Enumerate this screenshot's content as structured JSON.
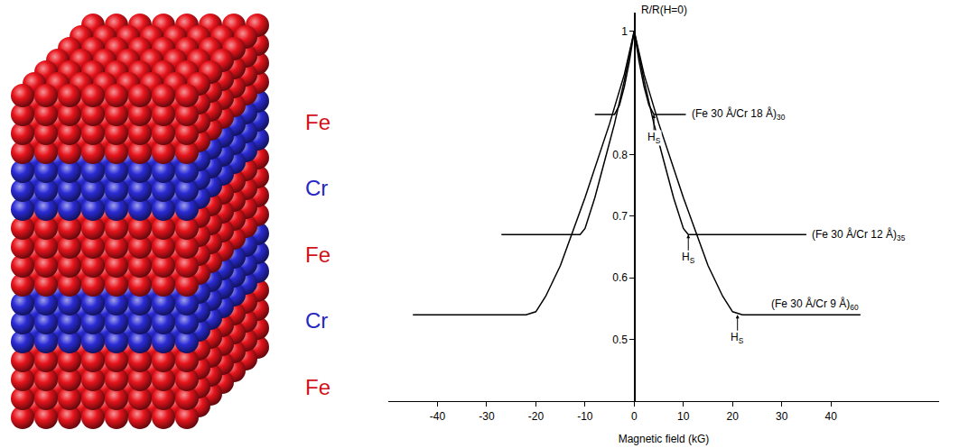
{
  "diagram": {
    "layers": [
      {
        "label": "Fe",
        "color": "#e8141c"
      },
      {
        "label": "Cr",
        "color": "#2b2bd6"
      },
      {
        "label": "Fe",
        "color": "#e8141c"
      },
      {
        "label": "Cr",
        "color": "#2b2bd6"
      },
      {
        "label": "Fe",
        "color": "#e8141c"
      }
    ]
  },
  "chart_data": {
    "type": "line",
    "x_label": "Magnetic field (kG)",
    "y_label": "R/R(H=0)",
    "xlim": [
      -50,
      62
    ],
    "xticks": [
      -40,
      -30,
      -20,
      -10,
      0,
      10,
      20,
      30,
      40
    ],
    "ylim": [
      0.4,
      1.03
    ],
    "yticks": [
      0.5,
      0.6,
      0.7,
      0.8,
      1
    ],
    "grid": false,
    "hs_label": {
      "text": "H",
      "subscript": "S"
    },
    "series": [
      {
        "name": "(Fe 30 Å/Cr 18 Å)",
        "subscript": "30",
        "color": "#000000",
        "hs": 4,
        "x": [
          -8,
          -4,
          -3,
          -2,
          -1,
          0,
          1,
          2,
          3,
          4,
          10.5
        ],
        "values": [
          0.865,
          0.865,
          0.88,
          0.91,
          0.95,
          1,
          0.95,
          0.91,
          0.88,
          0.865,
          0.865
        ]
      },
      {
        "name": "(Fe 30 Å/Cr 12 Å)",
        "subscript": "35",
        "color": "#000000",
        "hs": 11,
        "x": [
          -27,
          -11,
          -10,
          -8,
          -6,
          -4,
          -2,
          0,
          2,
          4,
          6,
          8,
          10,
          11,
          35
        ],
        "values": [
          0.67,
          0.67,
          0.68,
          0.73,
          0.79,
          0.85,
          0.92,
          1,
          0.92,
          0.85,
          0.79,
          0.73,
          0.68,
          0.67,
          0.67
        ]
      },
      {
        "name": "(Fe 30 Å/Cr 9 Å)",
        "subscript": "60",
        "color": "#000000",
        "hs": 21,
        "x": [
          -45,
          -22,
          -20,
          -18,
          -15,
          -10,
          -5,
          -2,
          0,
          2,
          5,
          10,
          15,
          18,
          20,
          22,
          46
        ],
        "values": [
          0.54,
          0.54,
          0.545,
          0.57,
          0.62,
          0.73,
          0.85,
          0.93,
          1,
          0.93,
          0.85,
          0.73,
          0.62,
          0.57,
          0.545,
          0.54,
          0.54
        ]
      }
    ]
  }
}
